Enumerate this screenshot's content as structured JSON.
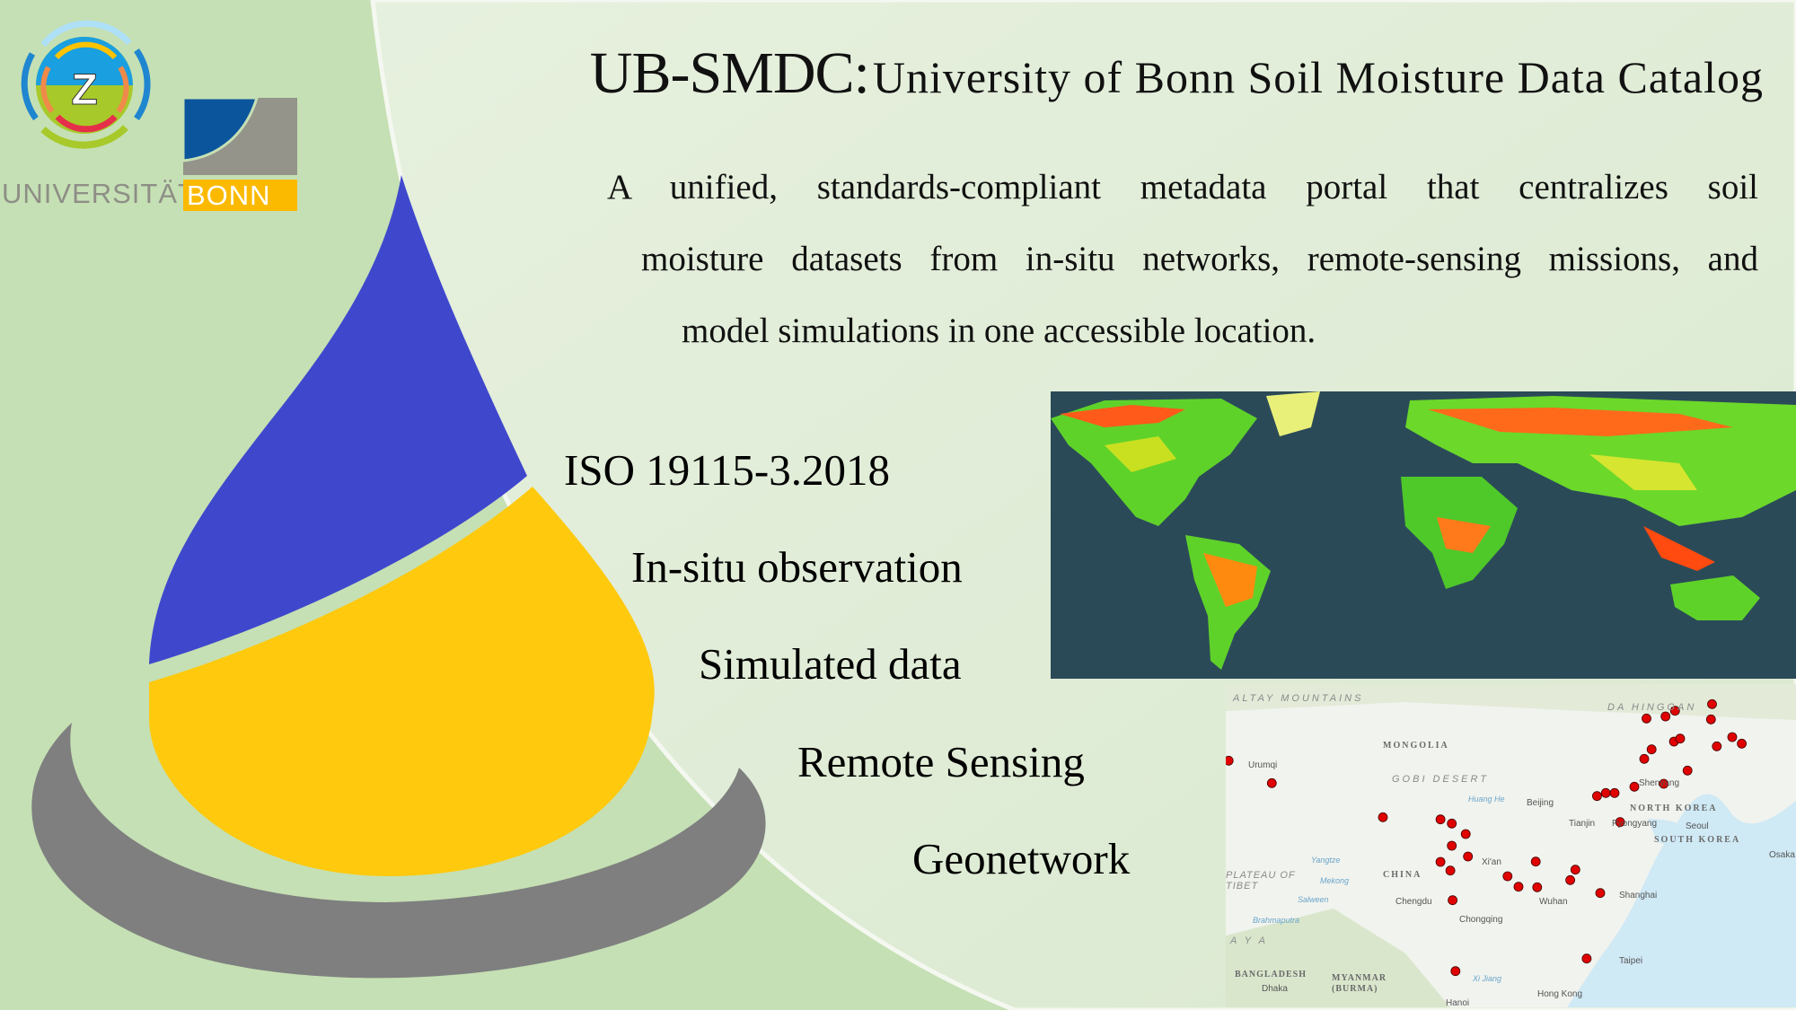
{
  "header": {
    "title_abbr": "UB-SMDC:",
    "title_full": "University of Bonn Soil Moisture Data Catalog"
  },
  "description": {
    "lines": [
      "A unified, standards-compliant metadata portal that centralizes soil",
      "moisture datasets from in-situ networks, remote-sensing missions, and",
      "model simulations in one accessible location."
    ]
  },
  "features": [
    "ISO 19115-3.2018",
    "In-situ observation",
    "Simulated data",
    "Remote Sensing",
    "Geonetwork"
  ],
  "logos": {
    "center_logo_letter": "Z",
    "university_word": "UNIVERSITÄT",
    "university_box": "BONN"
  },
  "colors": {
    "background_left": "#c5e0b4",
    "background_right": "#e2eed9",
    "drop_blue": "#3f48cc",
    "drop_yellow": "#ffc90e",
    "ring_gray": "#7f7f7f",
    "station_dot": "#e00000",
    "bonn_blue": "#0b559d",
    "bonn_yellow": "#fbba00"
  },
  "station_map": {
    "labels": {
      "altay": "ALTAY MOUNTAINS",
      "mongolia": "MONGOLIA",
      "urumqi": "Urumqi",
      "gobi": "GOBI DESERT",
      "huang_he": "Huang He",
      "beijing": "Beijing",
      "north_korea": "NORTH KOREA",
      "tianjin": "Tianjin",
      "pyongyang": "Pyongyang",
      "seoul": "Seoul",
      "south_korea": "SOUTH KOREA",
      "osaka": "Osaka",
      "shenyang": "Shenyang",
      "da_hinggan": "DA HINGGAN",
      "china": "CHINA",
      "xian": "Xi'an",
      "tibet": "PLATEAU OF TIBET",
      "yangtze": "Yangtze",
      "mekong": "Mekong",
      "salween": "Salween",
      "brahmaputra": "Brahmaputra",
      "chengdu": "Chengdu",
      "wuhan": "Wuhan",
      "shanghai": "Shanghai",
      "chongqing": "Chongqing",
      "taipei": "Taipei",
      "xi_jiang": "Xi Jiang",
      "hong_kong": "Hong Kong",
      "bangladesh": "BANGLADESH",
      "dhaka": "Dhaka",
      "myanmar": "MYANMAR (BURMA)",
      "hanoi": "Hanoi",
      "himalaya": "A Y A"
    }
  }
}
